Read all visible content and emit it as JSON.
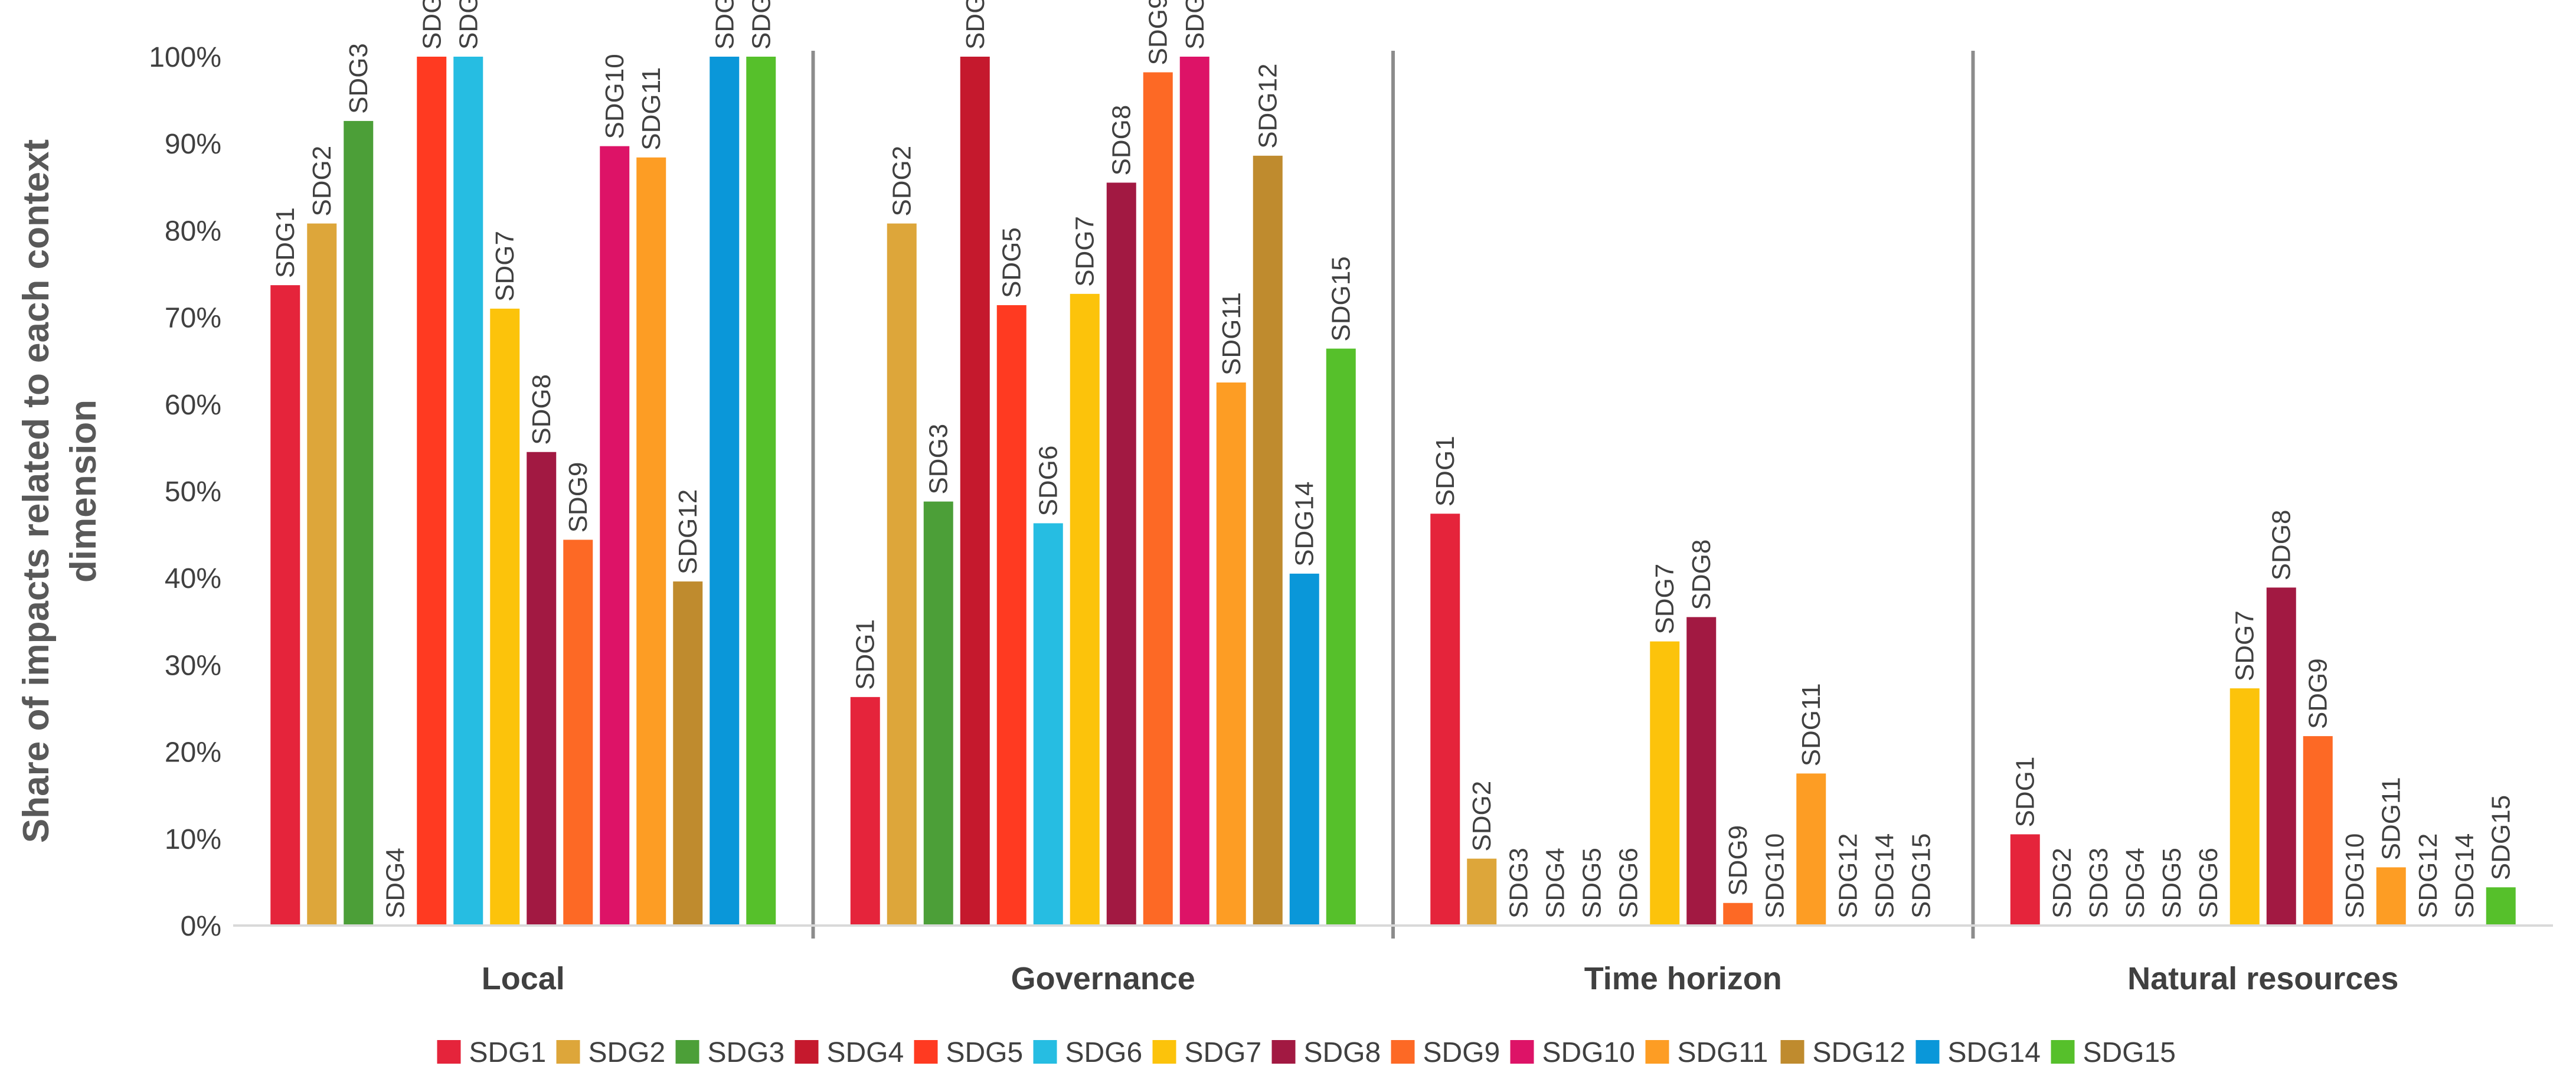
{
  "chart_data": {
    "type": "bar",
    "title": "",
    "xlabel": "",
    "ylabel_lines": [
      "Share of impacts related to each context",
      "dimension"
    ],
    "ylim": [
      0,
      100
    ],
    "y_ticks": [
      "0%",
      "10%",
      "20%",
      "30%",
      "40%",
      "50%",
      "60%",
      "70%",
      "80%",
      "90%",
      "100%"
    ],
    "grid": false,
    "legend_position": "bottom",
    "categories": [
      "Local",
      "Governance",
      "Time horizon",
      "Natural resources"
    ],
    "series": [
      {
        "name": "SDG1",
        "color": "#E5243B",
        "values": [
          73.7,
          26.3,
          47.4,
          10.5
        ]
      },
      {
        "name": "SDG2",
        "color": "#DDA63A",
        "values": [
          80.8,
          80.8,
          7.7,
          0
        ]
      },
      {
        "name": "SDG3",
        "color": "#4C9F38",
        "values": [
          92.6,
          48.8,
          0,
          0
        ]
      },
      {
        "name": "SDG4",
        "color": "#C5192D",
        "values": [
          0,
          100,
          0,
          0
        ]
      },
      {
        "name": "SDG5",
        "color": "#FF3A21",
        "values": [
          100,
          71.4,
          0,
          0
        ]
      },
      {
        "name": "SDG6",
        "color": "#26BDE2",
        "values": [
          100,
          46.3,
          0,
          0
        ]
      },
      {
        "name": "SDG7",
        "color": "#FCC30B",
        "values": [
          71.0,
          72.7,
          32.7,
          27.3
        ]
      },
      {
        "name": "SDG8",
        "color": "#A21942",
        "values": [
          54.5,
          85.5,
          35.5,
          38.9
        ]
      },
      {
        "name": "SDG9",
        "color": "#FD6925",
        "values": [
          44.4,
          98.2,
          2.6,
          21.8
        ]
      },
      {
        "name": "SDG10",
        "color": "#DD1367",
        "values": [
          89.7,
          100,
          0,
          0
        ]
      },
      {
        "name": "SDG11",
        "color": "#FD9D24",
        "values": [
          88.4,
          62.5,
          17.5,
          6.7
        ]
      },
      {
        "name": "SDG12",
        "color": "#BF8B2E",
        "values": [
          39.6,
          88.6,
          0,
          0
        ]
      },
      {
        "name": "SDG14",
        "color": "#0A97D9",
        "values": [
          100,
          40.5,
          0,
          0
        ]
      },
      {
        "name": "SDG15",
        "color": "#56C02B",
        "values": [
          100,
          66.4,
          0,
          4.4
        ]
      }
    ]
  }
}
